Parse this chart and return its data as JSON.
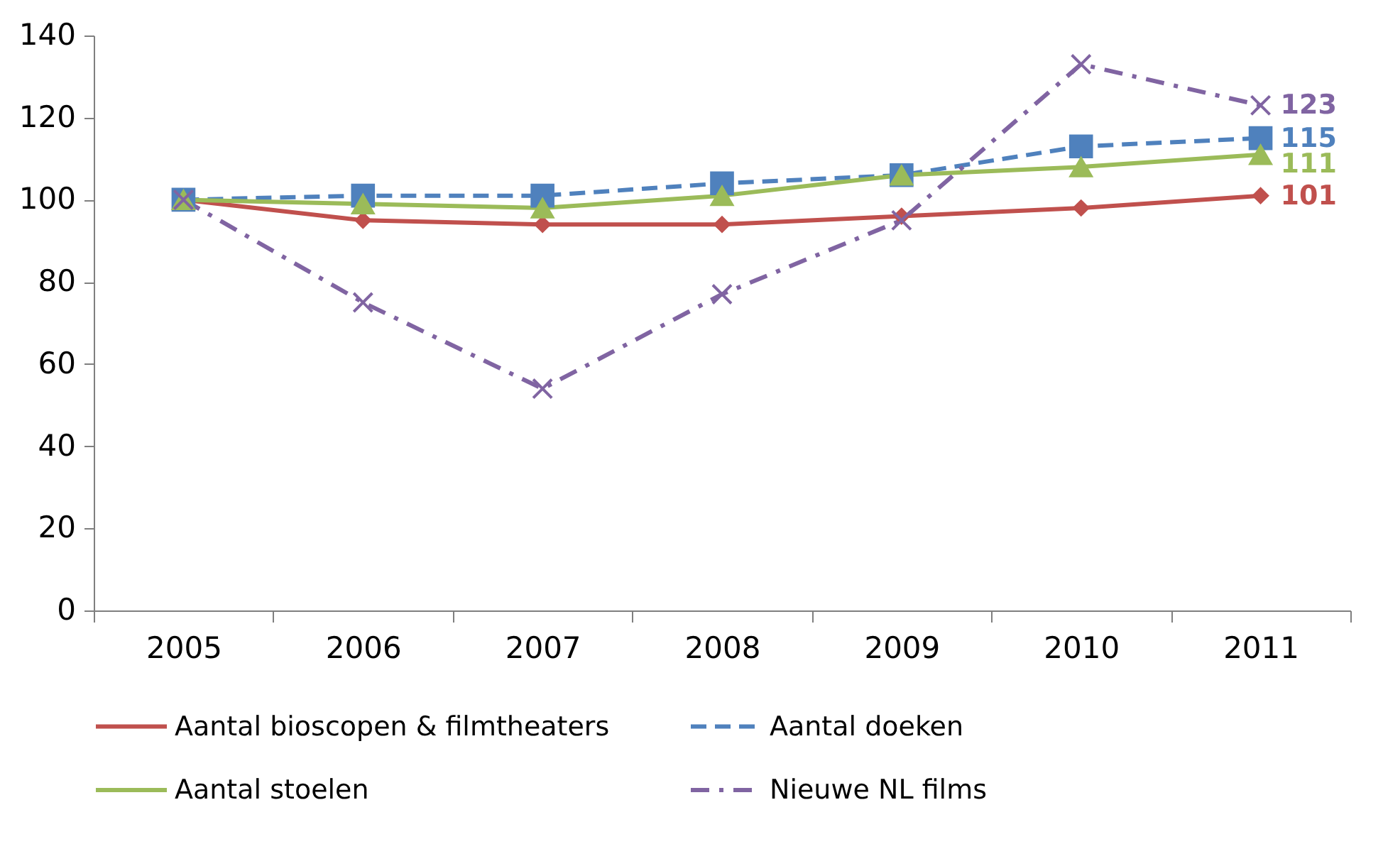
{
  "chart_data": {
    "type": "line",
    "categories": [
      "2005",
      "2006",
      "2007",
      "2008",
      "2009",
      "2010",
      "2011"
    ],
    "ylim": [
      0,
      140
    ],
    "yticks": [
      0,
      20,
      40,
      60,
      80,
      100,
      120,
      140
    ],
    "grid": false,
    "legend": "bottom",
    "series": [
      {
        "name": "Aantal bioscopen & filmtheaters",
        "color": "#c0504d",
        "marker": "diamond",
        "line_style": "solid",
        "values": [
          100,
          95,
          94,
          94,
          96,
          98,
          101
        ],
        "value_labels": [
          null,
          null,
          null,
          null,
          null,
          null,
          "101"
        ]
      },
      {
        "name": "Aantal doeken",
        "color": "#4f81bd",
        "marker": "square",
        "line_style": "dashed",
        "values": [
          100,
          101,
          101,
          104,
          106,
          113,
          115
        ],
        "value_labels": [
          null,
          null,
          null,
          null,
          null,
          null,
          "115"
        ]
      },
      {
        "name": "Aantal stoelen",
        "color": "#9bbb59",
        "marker": "triangle",
        "line_style": "solid",
        "values": [
          100,
          99,
          98,
          101,
          106,
          108,
          111
        ],
        "value_labels": [
          null,
          null,
          null,
          null,
          null,
          null,
          "111"
        ]
      },
      {
        "name": "Nieuwe NL films",
        "color": "#8064a2",
        "marker": "cross",
        "line_style": "dashdot",
        "values": [
          100,
          75,
          54,
          77,
          95,
          133,
          123
        ],
        "value_labels": [
          null,
          null,
          null,
          null,
          null,
          null,
          "123"
        ]
      }
    ]
  }
}
